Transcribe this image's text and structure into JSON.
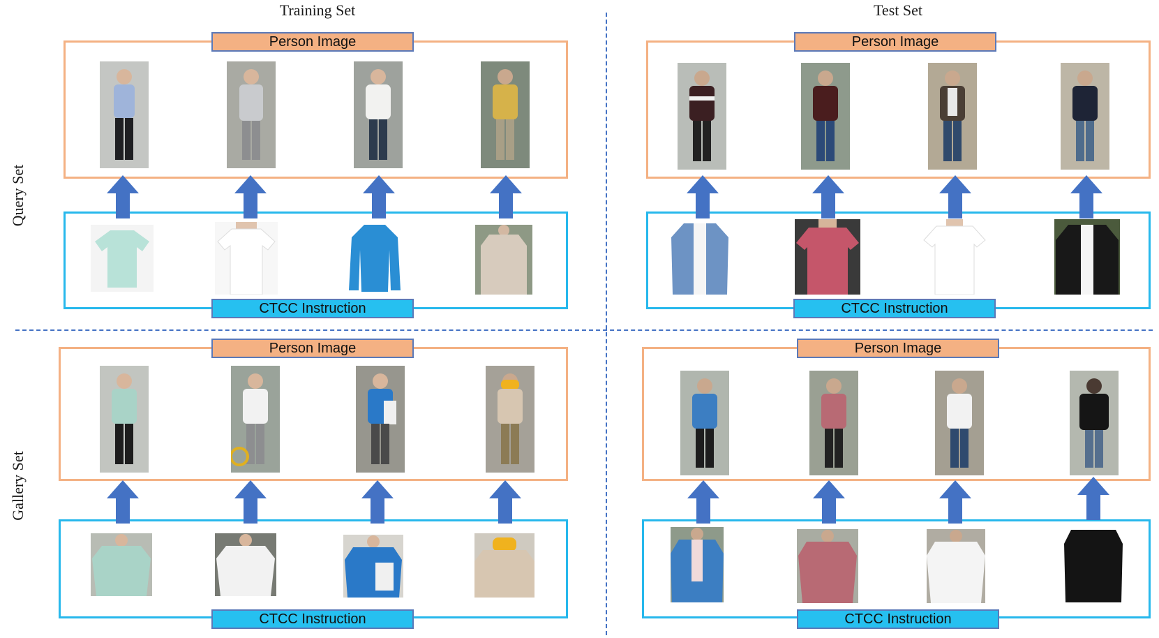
{
  "columns": {
    "left_title": "Training Set",
    "right_title": "Test Set"
  },
  "rows": {
    "top_title": "Query Set",
    "bottom_title": "Gallery Set"
  },
  "labels": {
    "person_image": "Person Image",
    "ctcc_instruction": "CTCC Instruction"
  },
  "colors": {
    "person_frame": "#f4b183",
    "ctcc_frame": "#27b8ec",
    "arrow": "#4472c4",
    "divider": "#4472c4"
  },
  "icons": {
    "arrow": "up-arrow-icon"
  }
}
